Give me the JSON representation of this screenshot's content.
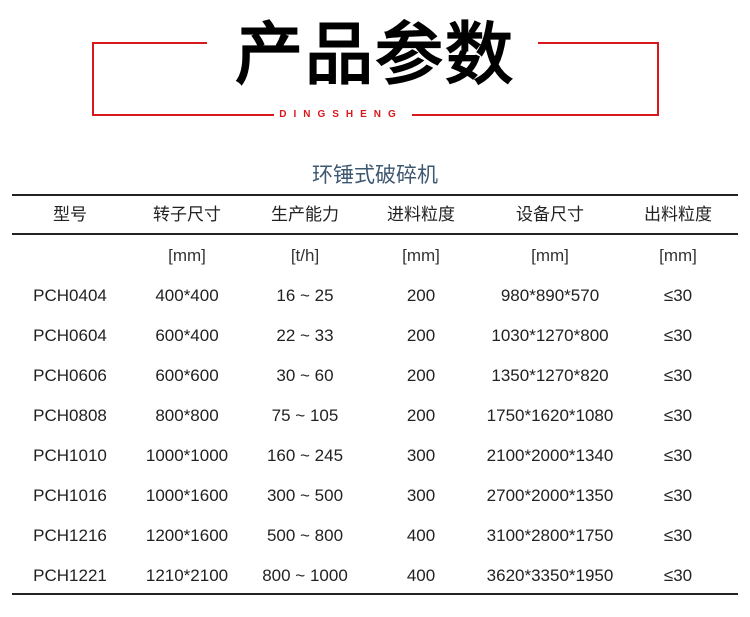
{
  "header": {
    "title": "产品参数",
    "brand": "DINGSHENG"
  },
  "table": {
    "caption": "环锤式破碎机",
    "columns": [
      "型号",
      "转子尺寸",
      "生产能力",
      "进料粒度",
      "设备尺寸",
      "出料粒度"
    ],
    "units": [
      "",
      "[mm]",
      "[t/h]",
      "[mm]",
      "[mm]",
      "[mm]"
    ],
    "rows": [
      [
        "PCH0404",
        "400*400",
        "16 ~ 25",
        "200",
        "980*890*570",
        "≤30"
      ],
      [
        "PCH0604",
        "600*400",
        "22 ~ 33",
        "200",
        "1030*1270*800",
        "≤30"
      ],
      [
        "PCH0606",
        "600*600",
        "30 ~ 60",
        "200",
        "1350*1270*820",
        "≤30"
      ],
      [
        "PCH0808",
        "800*800",
        "75 ~ 105",
        "200",
        "1750*1620*1080",
        "≤30"
      ],
      [
        "PCH1010",
        "1000*1000",
        "160 ~ 245",
        "300",
        "2100*2000*1340",
        "≤30"
      ],
      [
        "PCH1016",
        "1000*1600",
        "300 ~ 500",
        "300",
        "2700*2000*1350",
        "≤30"
      ],
      [
        "PCH1216",
        "1200*1600",
        "500 ~ 800",
        "400",
        "3100*2800*1750",
        "≤30"
      ],
      [
        "PCH1221",
        "1210*2100",
        "800 ~ 1000",
        "400",
        "3620*3350*1950",
        "≤30"
      ]
    ]
  },
  "colors": {
    "accent": "#d7191e",
    "caption": "#3d5870"
  }
}
